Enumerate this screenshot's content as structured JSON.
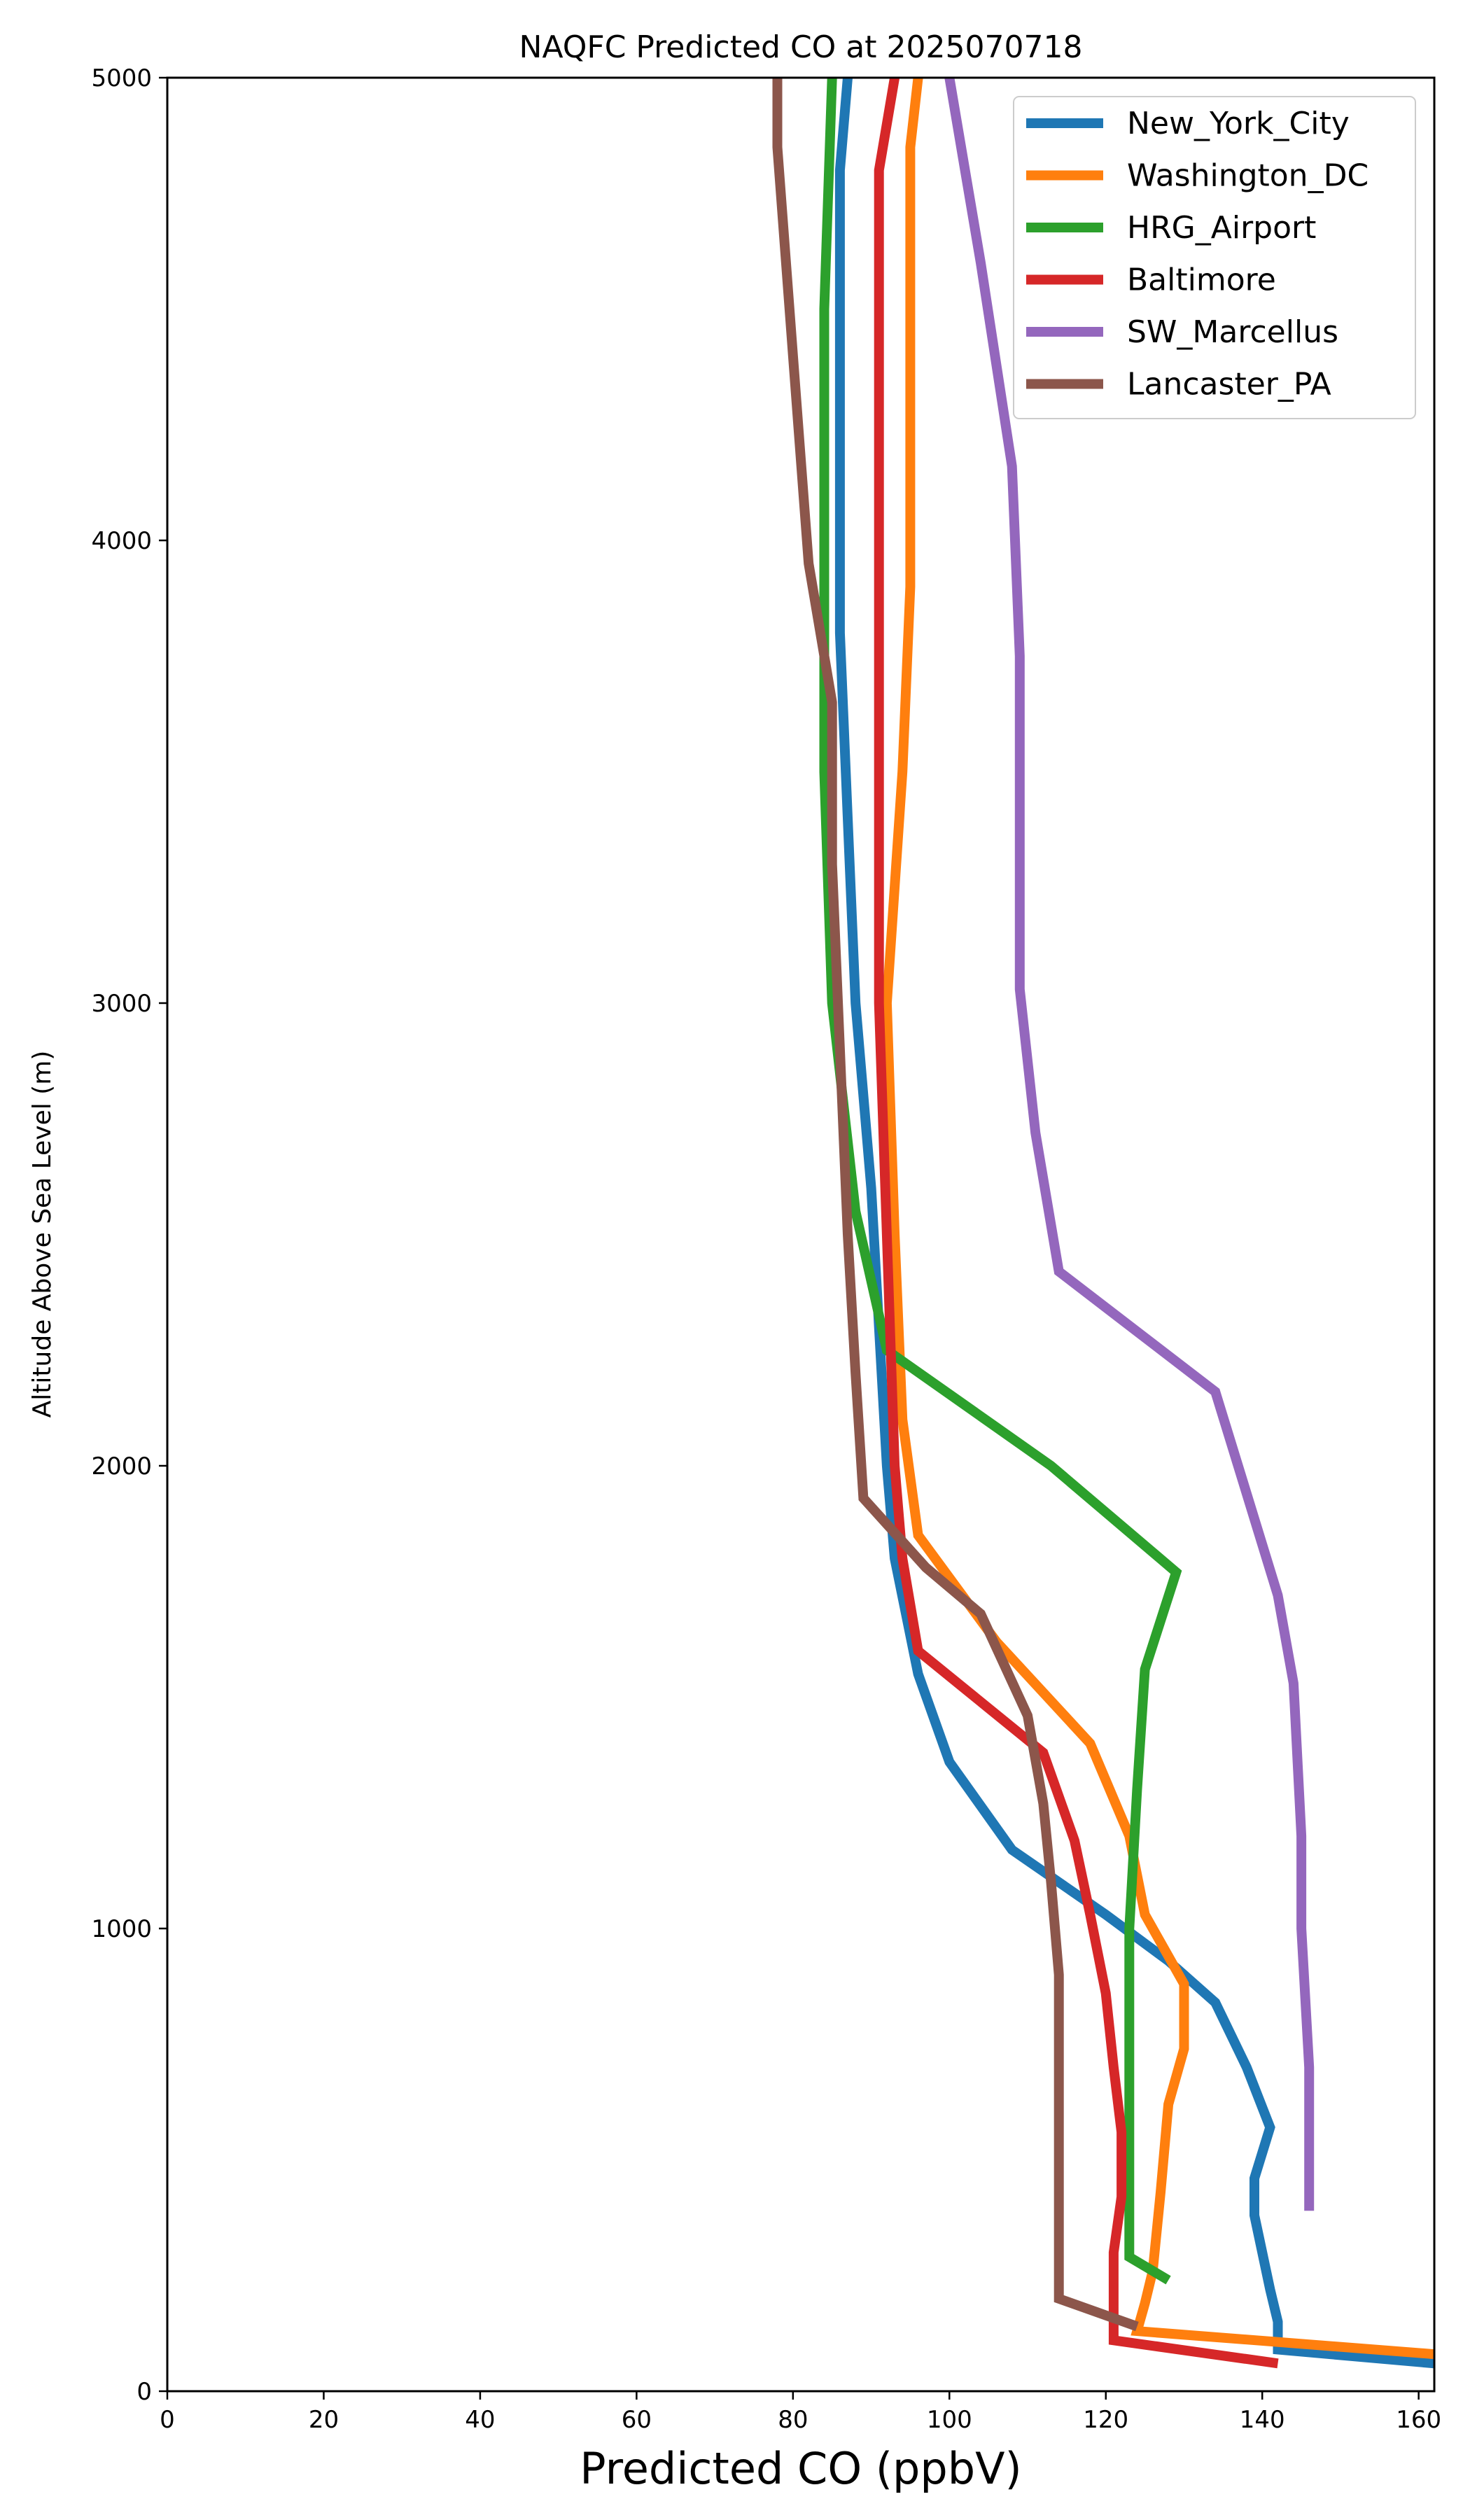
{
  "chart_data": {
    "type": "line",
    "title": "NAQFC Predicted CO at 2025070718",
    "xlabel": "Predicted CO (ppbV)",
    "ylabel": "Altitude Above Sea Level (m)",
    "xlim": [
      0,
      162
    ],
    "ylim": [
      0,
      5000
    ],
    "xticks": [
      0,
      20,
      40,
      60,
      80,
      100,
      120,
      140,
      160
    ],
    "yticks": [
      0,
      1000,
      2000,
      3000,
      4000,
      5000
    ],
    "grid": false,
    "legend_position": "top-right",
    "series": [
      {
        "name": "New_York_City",
        "color": "#1f77b4",
        "points": [
          [
            162,
            60
          ],
          [
            142,
            90
          ],
          [
            142,
            150
          ],
          [
            141,
            220
          ],
          [
            139,
            380
          ],
          [
            139,
            460
          ],
          [
            141,
            570
          ],
          [
            138,
            700
          ],
          [
            134,
            840
          ],
          [
            128,
            930
          ],
          [
            120,
            1030
          ],
          [
            108,
            1170
          ],
          [
            100,
            1360
          ],
          [
            96,
            1550
          ],
          [
            93,
            1800
          ],
          [
            92,
            2000
          ],
          [
            91,
            2300
          ],
          [
            90,
            2600
          ],
          [
            88,
            3000
          ],
          [
            87,
            3400
          ],
          [
            86,
            3800
          ],
          [
            86,
            4300
          ],
          [
            86,
            4800
          ],
          [
            87,
            5000
          ]
        ]
      },
      {
        "name": "Washington_DC",
        "color": "#ff7f0e",
        "points": [
          [
            162,
            80
          ],
          [
            124,
            130
          ],
          [
            125,
            190
          ],
          [
            126,
            260
          ],
          [
            127,
            430
          ],
          [
            128,
            620
          ],
          [
            130,
            740
          ],
          [
            130,
            880
          ],
          [
            125,
            1030
          ],
          [
            123,
            1200
          ],
          [
            118,
            1400
          ],
          [
            106,
            1620
          ],
          [
            96,
            1850
          ],
          [
            94,
            2100
          ],
          [
            93,
            2500
          ],
          [
            92,
            3000
          ],
          [
            94,
            3500
          ],
          [
            95,
            3900
          ],
          [
            95,
            4500
          ],
          [
            95,
            4850
          ],
          [
            96,
            5000
          ]
        ]
      },
      {
        "name": "HRG_Airport",
        "color": "#2ca02c",
        "points": [
          [
            128,
            240
          ],
          [
            123,
            290
          ],
          [
            123,
            600
          ],
          [
            123,
            1000
          ],
          [
            124,
            1300
          ],
          [
            125,
            1560
          ],
          [
            129,
            1770
          ],
          [
            113,
            2000
          ],
          [
            92,
            2250
          ],
          [
            88,
            2550
          ],
          [
            85,
            3000
          ],
          [
            84,
            3500
          ],
          [
            84,
            4000
          ],
          [
            84,
            4500
          ],
          [
            85,
            5000
          ]
        ]
      },
      {
        "name": "Baltimore",
        "color": "#d62728",
        "points": [
          [
            142,
            60
          ],
          [
            121,
            110
          ],
          [
            121,
            200
          ],
          [
            121,
            300
          ],
          [
            122,
            420
          ],
          [
            122,
            560
          ],
          [
            121,
            700
          ],
          [
            120,
            860
          ],
          [
            118,
            1030
          ],
          [
            116,
            1190
          ],
          [
            112,
            1380
          ],
          [
            96,
            1600
          ],
          [
            94,
            1800
          ],
          [
            93,
            2000
          ],
          [
            92,
            2500
          ],
          [
            91,
            3000
          ],
          [
            91,
            3450
          ],
          [
            91,
            3850
          ],
          [
            91,
            4300
          ],
          [
            91,
            4800
          ],
          [
            93,
            5000
          ]
        ]
      },
      {
        "name": "SW_Marcellus",
        "color": "#9467bd",
        "points": [
          [
            146,
            390
          ],
          [
            146,
            700
          ],
          [
            145,
            1000
          ],
          [
            145,
            1200
          ],
          [
            144,
            1530
          ],
          [
            142,
            1720
          ],
          [
            138,
            1940
          ],
          [
            134,
            2160
          ],
          [
            114,
            2420
          ],
          [
            111,
            2720
          ],
          [
            109,
            3030
          ],
          [
            109,
            3350
          ],
          [
            109,
            3750
          ],
          [
            108,
            4160
          ],
          [
            104,
            4600
          ],
          [
            102,
            4800
          ],
          [
            100,
            5000
          ]
        ]
      },
      {
        "name": "Lancaster_PA",
        "color": "#8c564b",
        "points": [
          [
            124,
            140
          ],
          [
            114,
            200
          ],
          [
            114,
            300
          ],
          [
            114,
            500
          ],
          [
            114,
            700
          ],
          [
            114,
            900
          ],
          [
            113,
            1100
          ],
          [
            112,
            1270
          ],
          [
            110,
            1460
          ],
          [
            104,
            1680
          ],
          [
            97,
            1780
          ],
          [
            89,
            1930
          ],
          [
            88,
            2200
          ],
          [
            87,
            2500
          ],
          [
            86,
            2900
          ],
          [
            85,
            3300
          ],
          [
            85,
            3650
          ],
          [
            82,
            3950
          ],
          [
            80,
            4400
          ],
          [
            78,
            4850
          ],
          [
            78,
            5000
          ]
        ]
      }
    ]
  }
}
